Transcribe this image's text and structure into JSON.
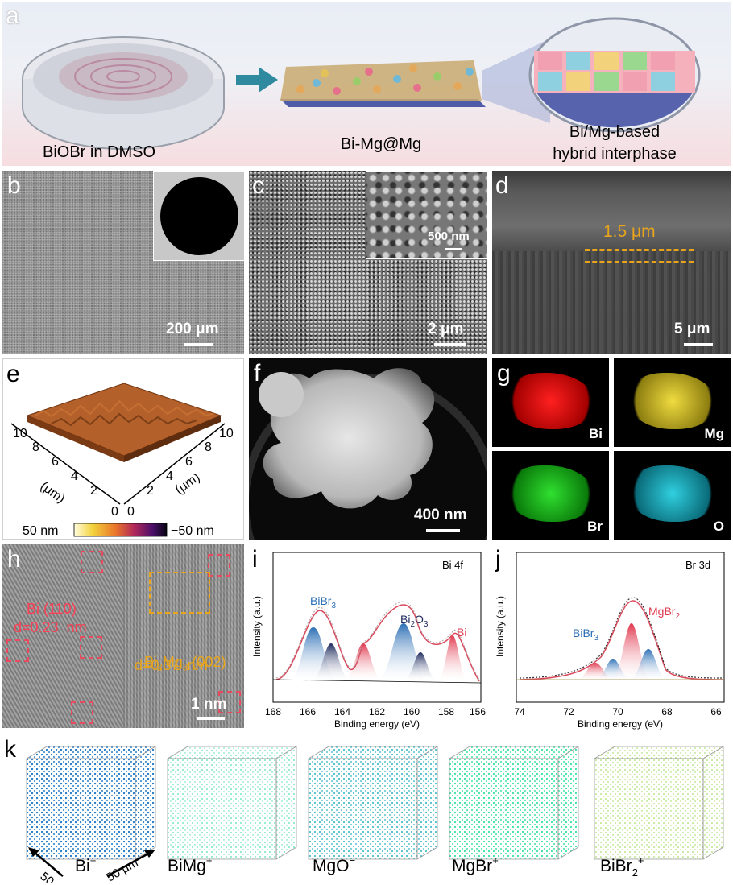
{
  "panel_a": {
    "label": "a",
    "caption1": "BiOBr in DMSO",
    "caption2": "Bi-Mg@Mg",
    "caption3_line1": "Bi/Mg-based",
    "caption3_line2": "hybrid interphase"
  },
  "panel_b": {
    "label": "b",
    "scale": "200 μm"
  },
  "panel_c": {
    "label": "c",
    "scale": "2 μm",
    "inset_scale": "500 nm"
  },
  "panel_d": {
    "label": "d",
    "scale": "5 μm",
    "thickness": "1.5 μm"
  },
  "panel_e": {
    "label": "e",
    "ticks_left": [
      "10",
      "8",
      "6",
      "4",
      "2",
      "0"
    ],
    "ticks_right": [
      "0",
      "2",
      "4",
      "6",
      "8",
      "10"
    ],
    "unit": "(μm)",
    "colorbar_min": "50 nm",
    "colorbar_max": "−50 nm"
  },
  "panel_f": {
    "label": "f",
    "scale": "400 nm"
  },
  "panel_g": {
    "label": "g",
    "maps": [
      "Bi",
      "Mg",
      "Br",
      "O"
    ],
    "colors": [
      "#e31010",
      "#d6c41a",
      "#19c31e",
      "#1fb7c4"
    ]
  },
  "panel_h": {
    "label": "h",
    "phase1_name": "Bi (110)",
    "phase1_d": "d=0.23  nm",
    "phase2_name": "Bi",
    "phase2_sub1": "2",
    "phase2_mid": "Mg",
    "phase2_sub2": "3",
    "phase2_tail": " (002)",
    "phase2_d": "d=0.37  nm",
    "scale": "1 nm"
  },
  "panel_i": {
    "label": "i",
    "title": "Bi 4f",
    "ylabel": "Intensity (a.u.)",
    "xlabel": "Binding energy (eV)",
    "xticks": [
      "168",
      "166",
      "164",
      "162",
      "160",
      "158",
      "156"
    ],
    "peak_label_1": "BiBr",
    "peak_label_1_sub": "3",
    "peak_label_2": "Bi",
    "peak_label_2_sub": "2",
    "peak_label_2_mid": "O",
    "peak_label_2_sub2": "3",
    "peak_label_3": "Bi"
  },
  "panel_j": {
    "label": "j",
    "title": "Br 3d",
    "ylabel": "Intensity (a.u.)",
    "xlabel": "Binding energy (eV)",
    "xticks": [
      "74",
      "72",
      "70",
      "68",
      "66"
    ],
    "peak_label_1": "BiBr",
    "peak_label_1_sub": "3",
    "peak_label_2": "MgBr",
    "peak_label_2_sub": "2"
  },
  "panel_k": {
    "label": "k",
    "axis_label": "50 μm",
    "ions": [
      {
        "base": "Bi",
        "sup": "+"
      },
      {
        "base": "BiMg",
        "sup": "+"
      },
      {
        "base": "MgO",
        "sup": "−"
      },
      {
        "base": "MgBr",
        "sup": "+"
      },
      {
        "base": "BiBr",
        "sub": "2",
        "sup": "+"
      }
    ],
    "colors": [
      "#2a7fc9",
      "#4fe0b0",
      "#2ab3c3",
      "#3de3a3",
      "#8fd63f"
    ]
  }
}
